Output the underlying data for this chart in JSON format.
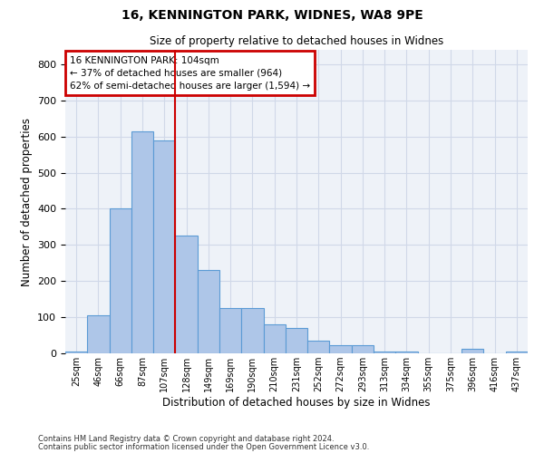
{
  "title1": "16, KENNINGTON PARK, WIDNES, WA8 9PE",
  "title2": "Size of property relative to detached houses in Widnes",
  "xlabel": "Distribution of detached houses by size in Widnes",
  "ylabel": "Number of detached properties",
  "footer1": "Contains HM Land Registry data © Crown copyright and database right 2024.",
  "footer2": "Contains public sector information licensed under the Open Government Licence v3.0.",
  "annotation_line1": "16 KENNINGTON PARK: 104sqm",
  "annotation_line2": "← 37% of detached houses are smaller (964)",
  "annotation_line3": "62% of semi-detached houses are larger (1,594) →",
  "bar_labels": [
    "25sqm",
    "46sqm",
    "66sqm",
    "87sqm",
    "107sqm",
    "128sqm",
    "149sqm",
    "169sqm",
    "190sqm",
    "210sqm",
    "231sqm",
    "252sqm",
    "272sqm",
    "293sqm",
    "313sqm",
    "334sqm",
    "355sqm",
    "375sqm",
    "396sqm",
    "416sqm",
    "437sqm"
  ],
  "bar_values": [
    5,
    105,
    400,
    615,
    590,
    325,
    230,
    125,
    125,
    80,
    70,
    35,
    22,
    22,
    5,
    5,
    0,
    0,
    12,
    0,
    5
  ],
  "bar_color": "#aec6e8",
  "bar_edge_color": "#5b9bd5",
  "vline_x": 4.5,
  "vline_color": "#cc0000",
  "annotation_box_color": "#cc0000",
  "ylim": [
    0,
    840
  ],
  "yticks": [
    0,
    100,
    200,
    300,
    400,
    500,
    600,
    700,
    800
  ],
  "grid_color": "#d0d8e8",
  "bg_color": "#eef2f8"
}
